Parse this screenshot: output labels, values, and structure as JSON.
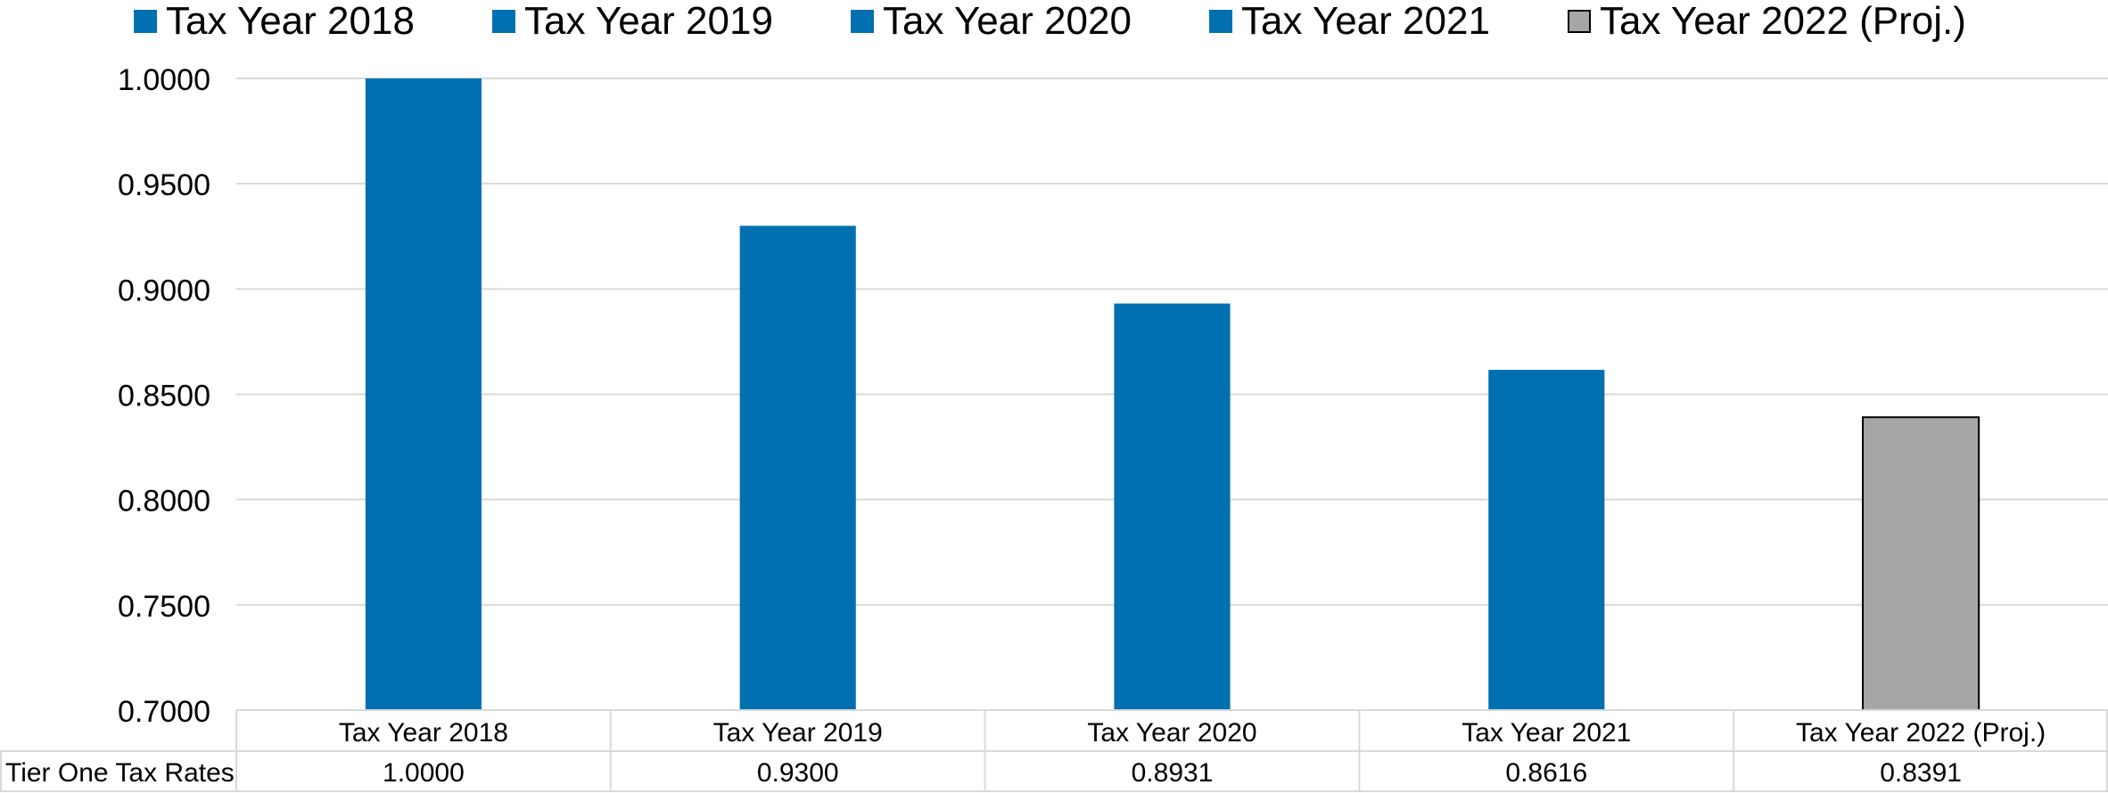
{
  "chart_data": {
    "type": "bar",
    "categories": [
      "Tax Year 2018",
      "Tax Year 2019",
      "Tax Year 2020",
      "Tax Year 2021",
      "Tax Year 2022 (Proj.)"
    ],
    "series": [
      {
        "name": "Tier One Tax Rates",
        "values": [
          1.0,
          0.93,
          0.8931,
          0.8616,
          0.8391
        ]
      }
    ],
    "value_labels": [
      "1.0000",
      "0.9300",
      "0.8931",
      "0.8616",
      "0.8391"
    ],
    "bar_colors": [
      "#0070b0",
      "#0070b0",
      "#0070b0",
      "#0070b0",
      "#a6a6a6"
    ],
    "legend": {
      "placement": "top",
      "items": [
        {
          "label": "Tax Year 2018",
          "color": "#0070b0"
        },
        {
          "label": "Tax Year 2019",
          "color": "#0070b0"
        },
        {
          "label": "Tax Year 2020",
          "color": "#0070b0"
        },
        {
          "label": "Tax Year 2021",
          "color": "#0070b0"
        },
        {
          "label": "Tax Year 2022 (Proj.)",
          "color": "#a6a6a6"
        }
      ]
    },
    "yticks": [
      "0.7000",
      "0.7500",
      "0.8000",
      "0.8500",
      "0.9000",
      "0.9500",
      "1.0000"
    ],
    "ylim": [
      0.7,
      1.0
    ],
    "grid": true,
    "data_table": true,
    "data_table_row_label": "Tier One Tax Rates",
    "title": "",
    "xlabel": "",
    "ylabel": ""
  }
}
